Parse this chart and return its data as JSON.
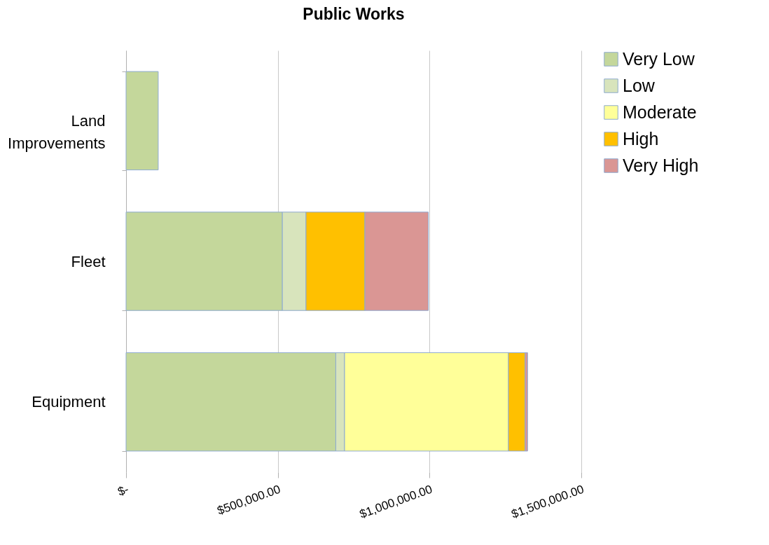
{
  "chart_data": {
    "type": "bar",
    "orientation": "horizontal",
    "stacked": true,
    "title": "Public Works",
    "categories": [
      "Land Improvements",
      "Fleet",
      "Equipment"
    ],
    "series": [
      {
        "name": "Very Low",
        "color": "#c4d79b",
        "values": [
          106000,
          515000,
          691000
        ]
      },
      {
        "name": "Low",
        "color": "#d8e4bc",
        "values": [
          null,
          78000,
          29000
        ]
      },
      {
        "name": "Moderate",
        "color": "#ffff99",
        "values": [
          null,
          null,
          540000
        ]
      },
      {
        "name": "High",
        "color": "#ffc000",
        "values": [
          null,
          194000,
          55000
        ]
      },
      {
        "name": "Very High",
        "color": "#da9694",
        "values": [
          null,
          209000,
          8000
        ]
      }
    ],
    "xlim": [
      0,
      1500000
    ],
    "xticks": [
      {
        "value": 0,
        "label": "$-"
      },
      {
        "value": 500000,
        "label": "$500,000.00"
      },
      {
        "value": 1000000,
        "label": "$1,000,000.00"
      },
      {
        "value": 1500000,
        "label": "$1,500,000.00"
      }
    ],
    "grid": "x",
    "legend": "right"
  }
}
